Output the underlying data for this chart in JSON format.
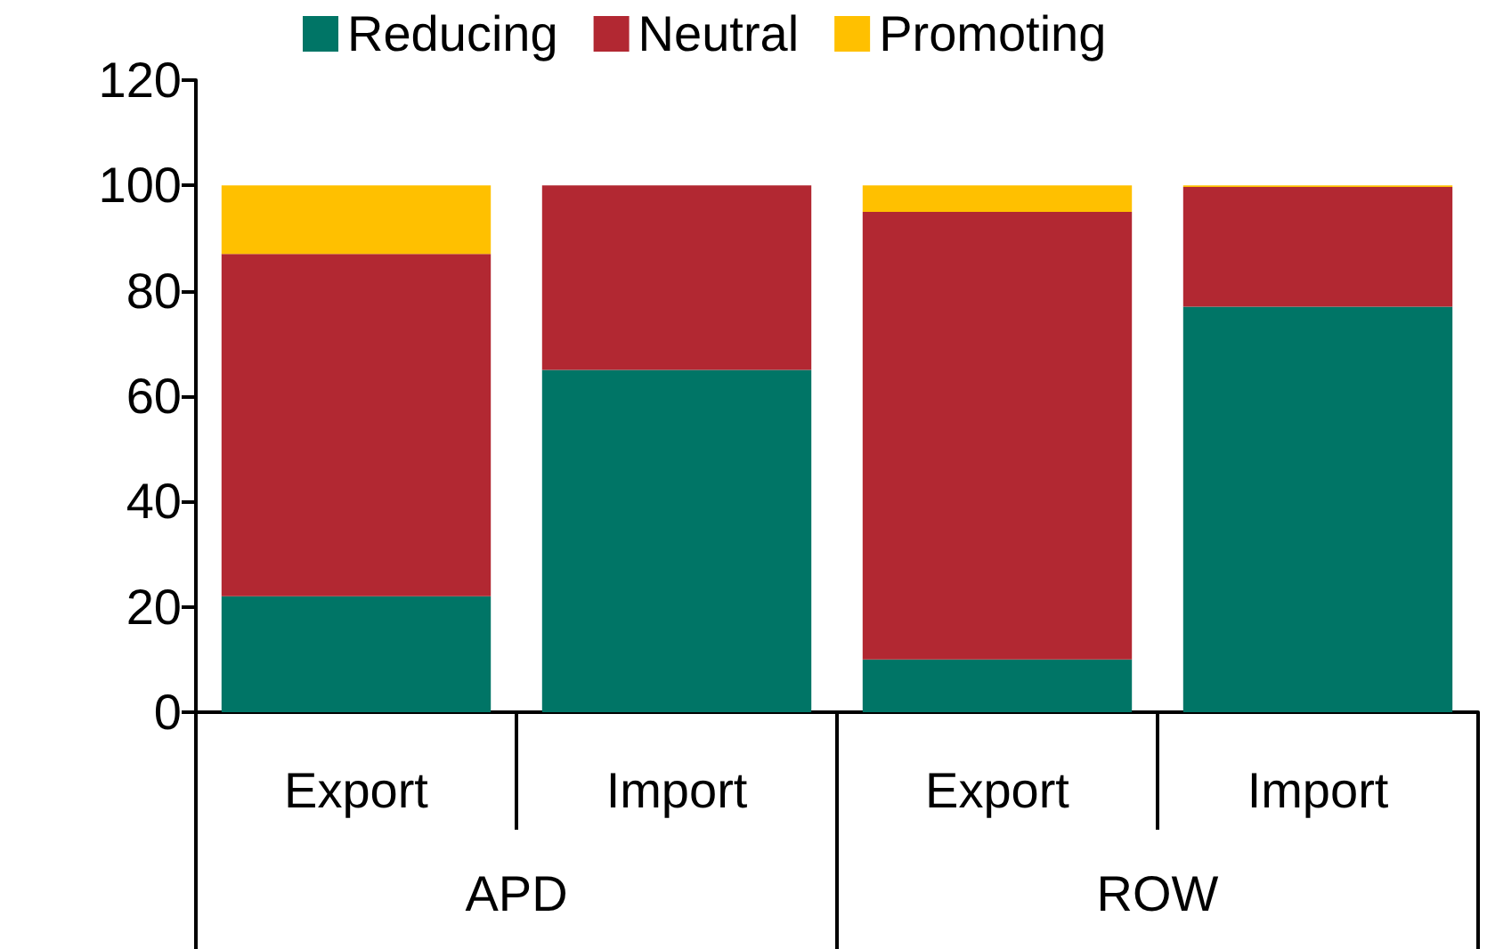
{
  "chart_data": {
    "type": "bar",
    "stacked": true,
    "categories": [
      "Export",
      "Import",
      "Export",
      "Import"
    ],
    "annotations": [
      "APD",
      "ROW"
    ],
    "series": [
      {
        "name": "Reducing",
        "color": "#007566",
        "values": [
          22,
          65,
          10,
          77
        ]
      },
      {
        "name": "Neutral",
        "color": "#b22832",
        "values": [
          65,
          35,
          85,
          22.7
        ]
      },
      {
        "name": "Promoting",
        "color": "#ffc000",
        "values": [
          13,
          0,
          5,
          0.3
        ]
      }
    ],
    "ylim": [
      0,
      120
    ],
    "yticks": [
      0,
      20,
      40,
      60,
      80,
      100,
      120
    ],
    "grid": false,
    "legend": "top"
  }
}
